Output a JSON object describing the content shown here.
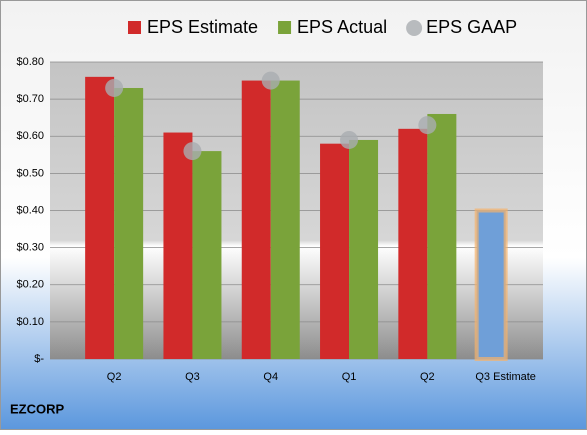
{
  "chart_data": {
    "type": "bar",
    "company": "EZCORP",
    "categories": [
      "Q2",
      "Q3",
      "Q4",
      "Q1",
      "Q2",
      "Q3 Estimate"
    ],
    "series": [
      {
        "name": "EPS Estimate",
        "color": "#d12a2a",
        "values": [
          0.76,
          0.61,
          0.75,
          0.58,
          0.62,
          null
        ]
      },
      {
        "name": "EPS Actual",
        "color": "#7aa33a",
        "values": [
          0.73,
          0.56,
          0.75,
          0.59,
          0.66,
          null
        ]
      },
      {
        "name": "EPS GAAP",
        "color": "#a9acb0",
        "values": [
          0.73,
          0.56,
          0.75,
          0.59,
          0.63,
          null
        ]
      }
    ],
    "projection": {
      "color": "#6f9fd8",
      "outline": "#f5b26b",
      "values": [
        null,
        null,
        null,
        null,
        null,
        0.4
      ]
    },
    "ylim": [
      0,
      0.8
    ],
    "yticks": [
      {
        "value": 0,
        "label": "$-"
      },
      {
        "value": 0.1,
        "label": "$0.10"
      },
      {
        "value": 0.2,
        "label": "$0.20"
      },
      {
        "value": 0.3,
        "label": "$0.30"
      },
      {
        "value": 0.4,
        "label": "$0.40"
      },
      {
        "value": 0.5,
        "label": "$0.50"
      },
      {
        "value": 0.6,
        "label": "$0.60"
      },
      {
        "value": 0.7,
        "label": "$0.70"
      },
      {
        "value": 0.8,
        "label": "$0.80"
      }
    ],
    "grid": true
  }
}
